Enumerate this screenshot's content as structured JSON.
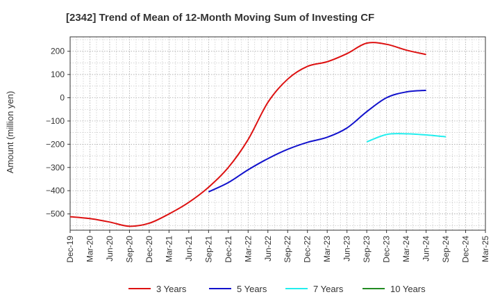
{
  "chart_data": {
    "type": "line",
    "title": "[2342]  Trend of Mean of 12-Month Moving Sum of Investing CF",
    "xlabel": "",
    "ylabel": "Amount (million yen)",
    "ylim": [
      -570,
      262
    ],
    "yticks": [
      200,
      100,
      0,
      -100,
      -200,
      -300,
      -400,
      -500
    ],
    "ytick_labels": [
      "200",
      "100",
      "0",
      "−100",
      "−200",
      "−300",
      "−400",
      "−500"
    ],
    "categories": [
      "Dec-19",
      "Mar-20",
      "Jun-20",
      "Sep-20",
      "Dec-20",
      "Mar-21",
      "Jun-21",
      "Sep-21",
      "Dec-21",
      "Mar-22",
      "Jun-22",
      "Sep-22",
      "Dec-22",
      "Mar-23",
      "Jun-23",
      "Sep-23",
      "Dec-23",
      "Mar-24",
      "Jun-24",
      "Sep-24",
      "Dec-24",
      "Mar-25"
    ],
    "grid": true,
    "legend_position": "bottom",
    "series": [
      {
        "name": "3 Years",
        "color": "#dd1111",
        "values": [
          -512,
          -520,
          -535,
          -553,
          -540,
          -500,
          -450,
          -385,
          -300,
          -180,
          -20,
          80,
          135,
          155,
          190,
          235,
          230,
          205,
          186,
          null,
          null,
          null
        ]
      },
      {
        "name": "5 Years",
        "color": "#1111cc",
        "values": [
          null,
          null,
          null,
          null,
          null,
          null,
          null,
          -405,
          -365,
          -310,
          -262,
          -222,
          -192,
          -170,
          -130,
          -60,
          0,
          25,
          32,
          null,
          null,
          null
        ]
      },
      {
        "name": "7 Years",
        "color": "#22eeee",
        "values": [
          null,
          null,
          null,
          null,
          null,
          null,
          null,
          null,
          null,
          null,
          null,
          null,
          null,
          null,
          null,
          -190,
          -158,
          -155,
          -160,
          -168,
          null,
          null
        ]
      },
      {
        "name": "10 Years",
        "color": "#228b22",
        "values": [
          null,
          null,
          null,
          null,
          null,
          null,
          null,
          null,
          null,
          null,
          null,
          null,
          null,
          null,
          null,
          null,
          null,
          null,
          null,
          null,
          null,
          null
        ]
      }
    ]
  }
}
